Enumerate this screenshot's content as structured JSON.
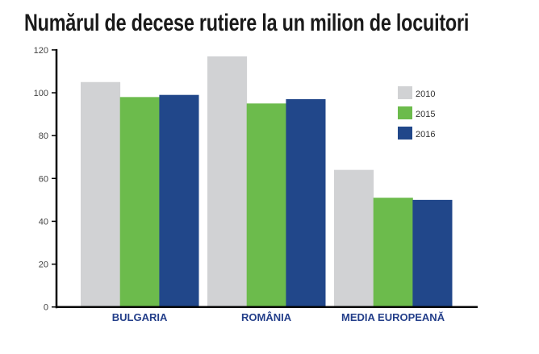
{
  "chart_data": {
    "type": "bar",
    "title": "Numărul de decese rutiere la un milion de locuitori",
    "xlabel": "",
    "ylabel": "",
    "categories": [
      "BULGARIA",
      "ROMÂNIA",
      "MEDIA EUROPEANĂ"
    ],
    "series": [
      {
        "name": "2010",
        "color": "#d1d2d4",
        "values": [
          105,
          117,
          64
        ]
      },
      {
        "name": "2015",
        "color": "#6cbb4c",
        "values": [
          98,
          95,
          51
        ]
      },
      {
        "name": "2016",
        "color": "#21478a",
        "values": [
          99,
          97,
          50
        ]
      }
    ],
    "ylim": [
      0,
      120
    ],
    "yticks": [
      "0",
      "20",
      "40",
      "60",
      "80",
      "100",
      "120"
    ],
    "grid": false,
    "legend": "right"
  }
}
